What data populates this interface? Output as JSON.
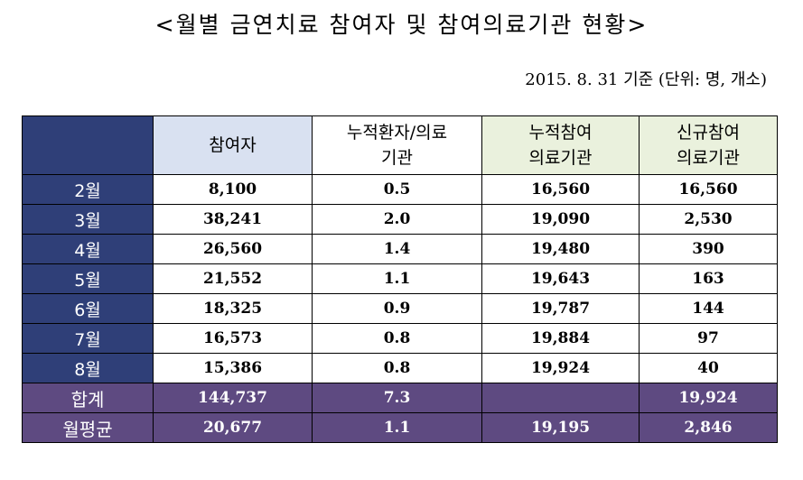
{
  "title": "<월별 금연치료 참여자 및 참여의료기관 현황>",
  "subtitle": "2015. 8. 31 기준 (단위: 명, 개소)",
  "table": {
    "headers": [
      "참여자",
      "누적환자/의료기관",
      "누적참여의료기관",
      "신규참여의료기관"
    ],
    "header_lines": {
      "participants": [
        "참여자"
      ],
      "ratio": [
        "누적환자/의료",
        "기관"
      ],
      "cumulative": [
        "누적참여",
        "의료기관"
      ],
      "new": [
        "신규참여",
        "의료기관"
      ]
    },
    "rows": [
      {
        "label": "2월",
        "participants": "8,100",
        "ratio": "0.5",
        "cumulative": "16,560",
        "new": "16,560"
      },
      {
        "label": "3월",
        "participants": "38,241",
        "ratio": "2.0",
        "cumulative": "19,090",
        "new": "2,530"
      },
      {
        "label": "4월",
        "participants": "26,560",
        "ratio": "1.4",
        "cumulative": "19,480",
        "new": "390"
      },
      {
        "label": "5월",
        "participants": "21,552",
        "ratio": "1.1",
        "cumulative": "19,643",
        "new": "163"
      },
      {
        "label": "6월",
        "participants": "18,325",
        "ratio": "0.9",
        "cumulative": "19,787",
        "new": "144"
      },
      {
        "label": "7월",
        "participants": "16,573",
        "ratio": "0.8",
        "cumulative": "19,884",
        "new": "97"
      },
      {
        "label": "8월",
        "participants": "15,386",
        "ratio": "0.8",
        "cumulative": "19,924",
        "new": "40"
      }
    ],
    "total": {
      "label": "합계",
      "participants": "144,737",
      "ratio": "7.3",
      "cumulative": "",
      "new": "19,924"
    },
    "average": {
      "label": "월평균",
      "participants": "20,677",
      "ratio": "1.1",
      "cumulative": "19,195",
      "new": "2,846"
    }
  },
  "colors": {
    "header_corner": "#2f3f78",
    "month_cell": "#2f3f78",
    "header_participants": "#d9e1f1",
    "header_green": "#eaf1dd",
    "summary_rows": "#5e4a81"
  }
}
